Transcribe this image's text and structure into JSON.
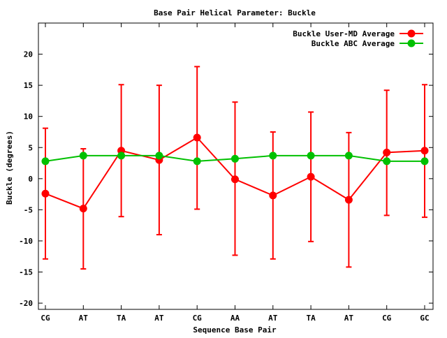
{
  "chart_data": {
    "type": "line",
    "title": "Base Pair Helical Parameter: Buckle",
    "xlabel": "Sequence Base Pair",
    "ylabel": "Buckle (degrees)",
    "categories": [
      "CG",
      "AT",
      "TA",
      "AT",
      "CG",
      "AA",
      "AT",
      "TA",
      "AT",
      "CG",
      "GC"
    ],
    "ylim": [
      -21,
      25
    ],
    "yticks": [
      -20,
      -15,
      -10,
      -5,
      0,
      5,
      10,
      15,
      20
    ],
    "legend_position": "top-right",
    "grid": false,
    "series": [
      {
        "name": "Buckle User-MD Average",
        "color": "#ff0000",
        "values": [
          -2.4,
          -4.8,
          4.5,
          3.0,
          6.6,
          -0.1,
          -2.7,
          0.3,
          -3.4,
          4.2,
          4.5
        ],
        "error_low": [
          -12.9,
          -14.5,
          -6.1,
          -9.0,
          -4.9,
          -12.3,
          -12.9,
          -10.1,
          -14.2,
          -5.9,
          -6.2
        ],
        "error_high": [
          8.1,
          4.8,
          15.1,
          15.0,
          18.0,
          12.3,
          7.5,
          10.7,
          7.4,
          14.2,
          15.1
        ]
      },
      {
        "name": "Buckle ABC Average",
        "color": "#00c000",
        "values": [
          2.8,
          3.7,
          3.7,
          3.7,
          2.8,
          3.2,
          3.7,
          3.7,
          3.7,
          2.8,
          2.8
        ]
      }
    ]
  }
}
